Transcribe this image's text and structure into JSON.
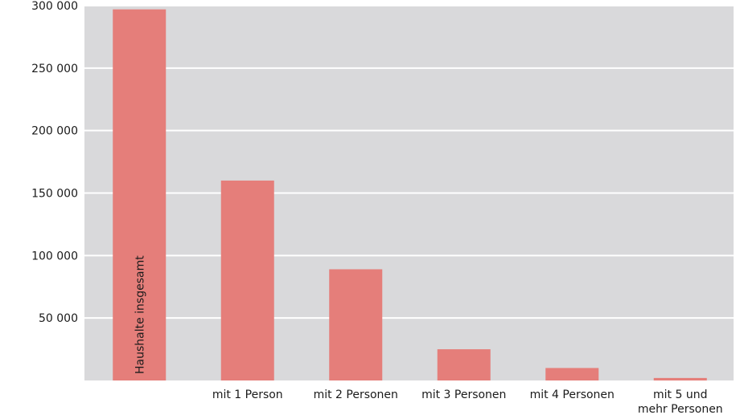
{
  "colors": {
    "plot_background": "#d9d9db",
    "bar": "#e57e7a",
    "gridline": "#ffffff"
  },
  "chart_data": {
    "type": "bar",
    "categories": [
      "",
      "mit 1 Person",
      "mit 2 Personen",
      "mit 3 Personen",
      "mit 4 Personen",
      "mit 5 und\nmehr Personen"
    ],
    "in_bar_labels": [
      "Haushalte insgesamt",
      "",
      "",
      "",
      "",
      ""
    ],
    "values": [
      297000,
      160000,
      89000,
      25000,
      10000,
      2000
    ],
    "ylim": [
      0,
      300000
    ],
    "yticks": [
      50000,
      100000,
      150000,
      200000,
      250000,
      300000
    ],
    "ytick_labels": [
      "50 000",
      "100 000",
      "150 000",
      "200 000",
      "250 000",
      "300 000"
    ],
    "grid": true,
    "title": "",
    "xlabel": "",
    "ylabel": ""
  }
}
